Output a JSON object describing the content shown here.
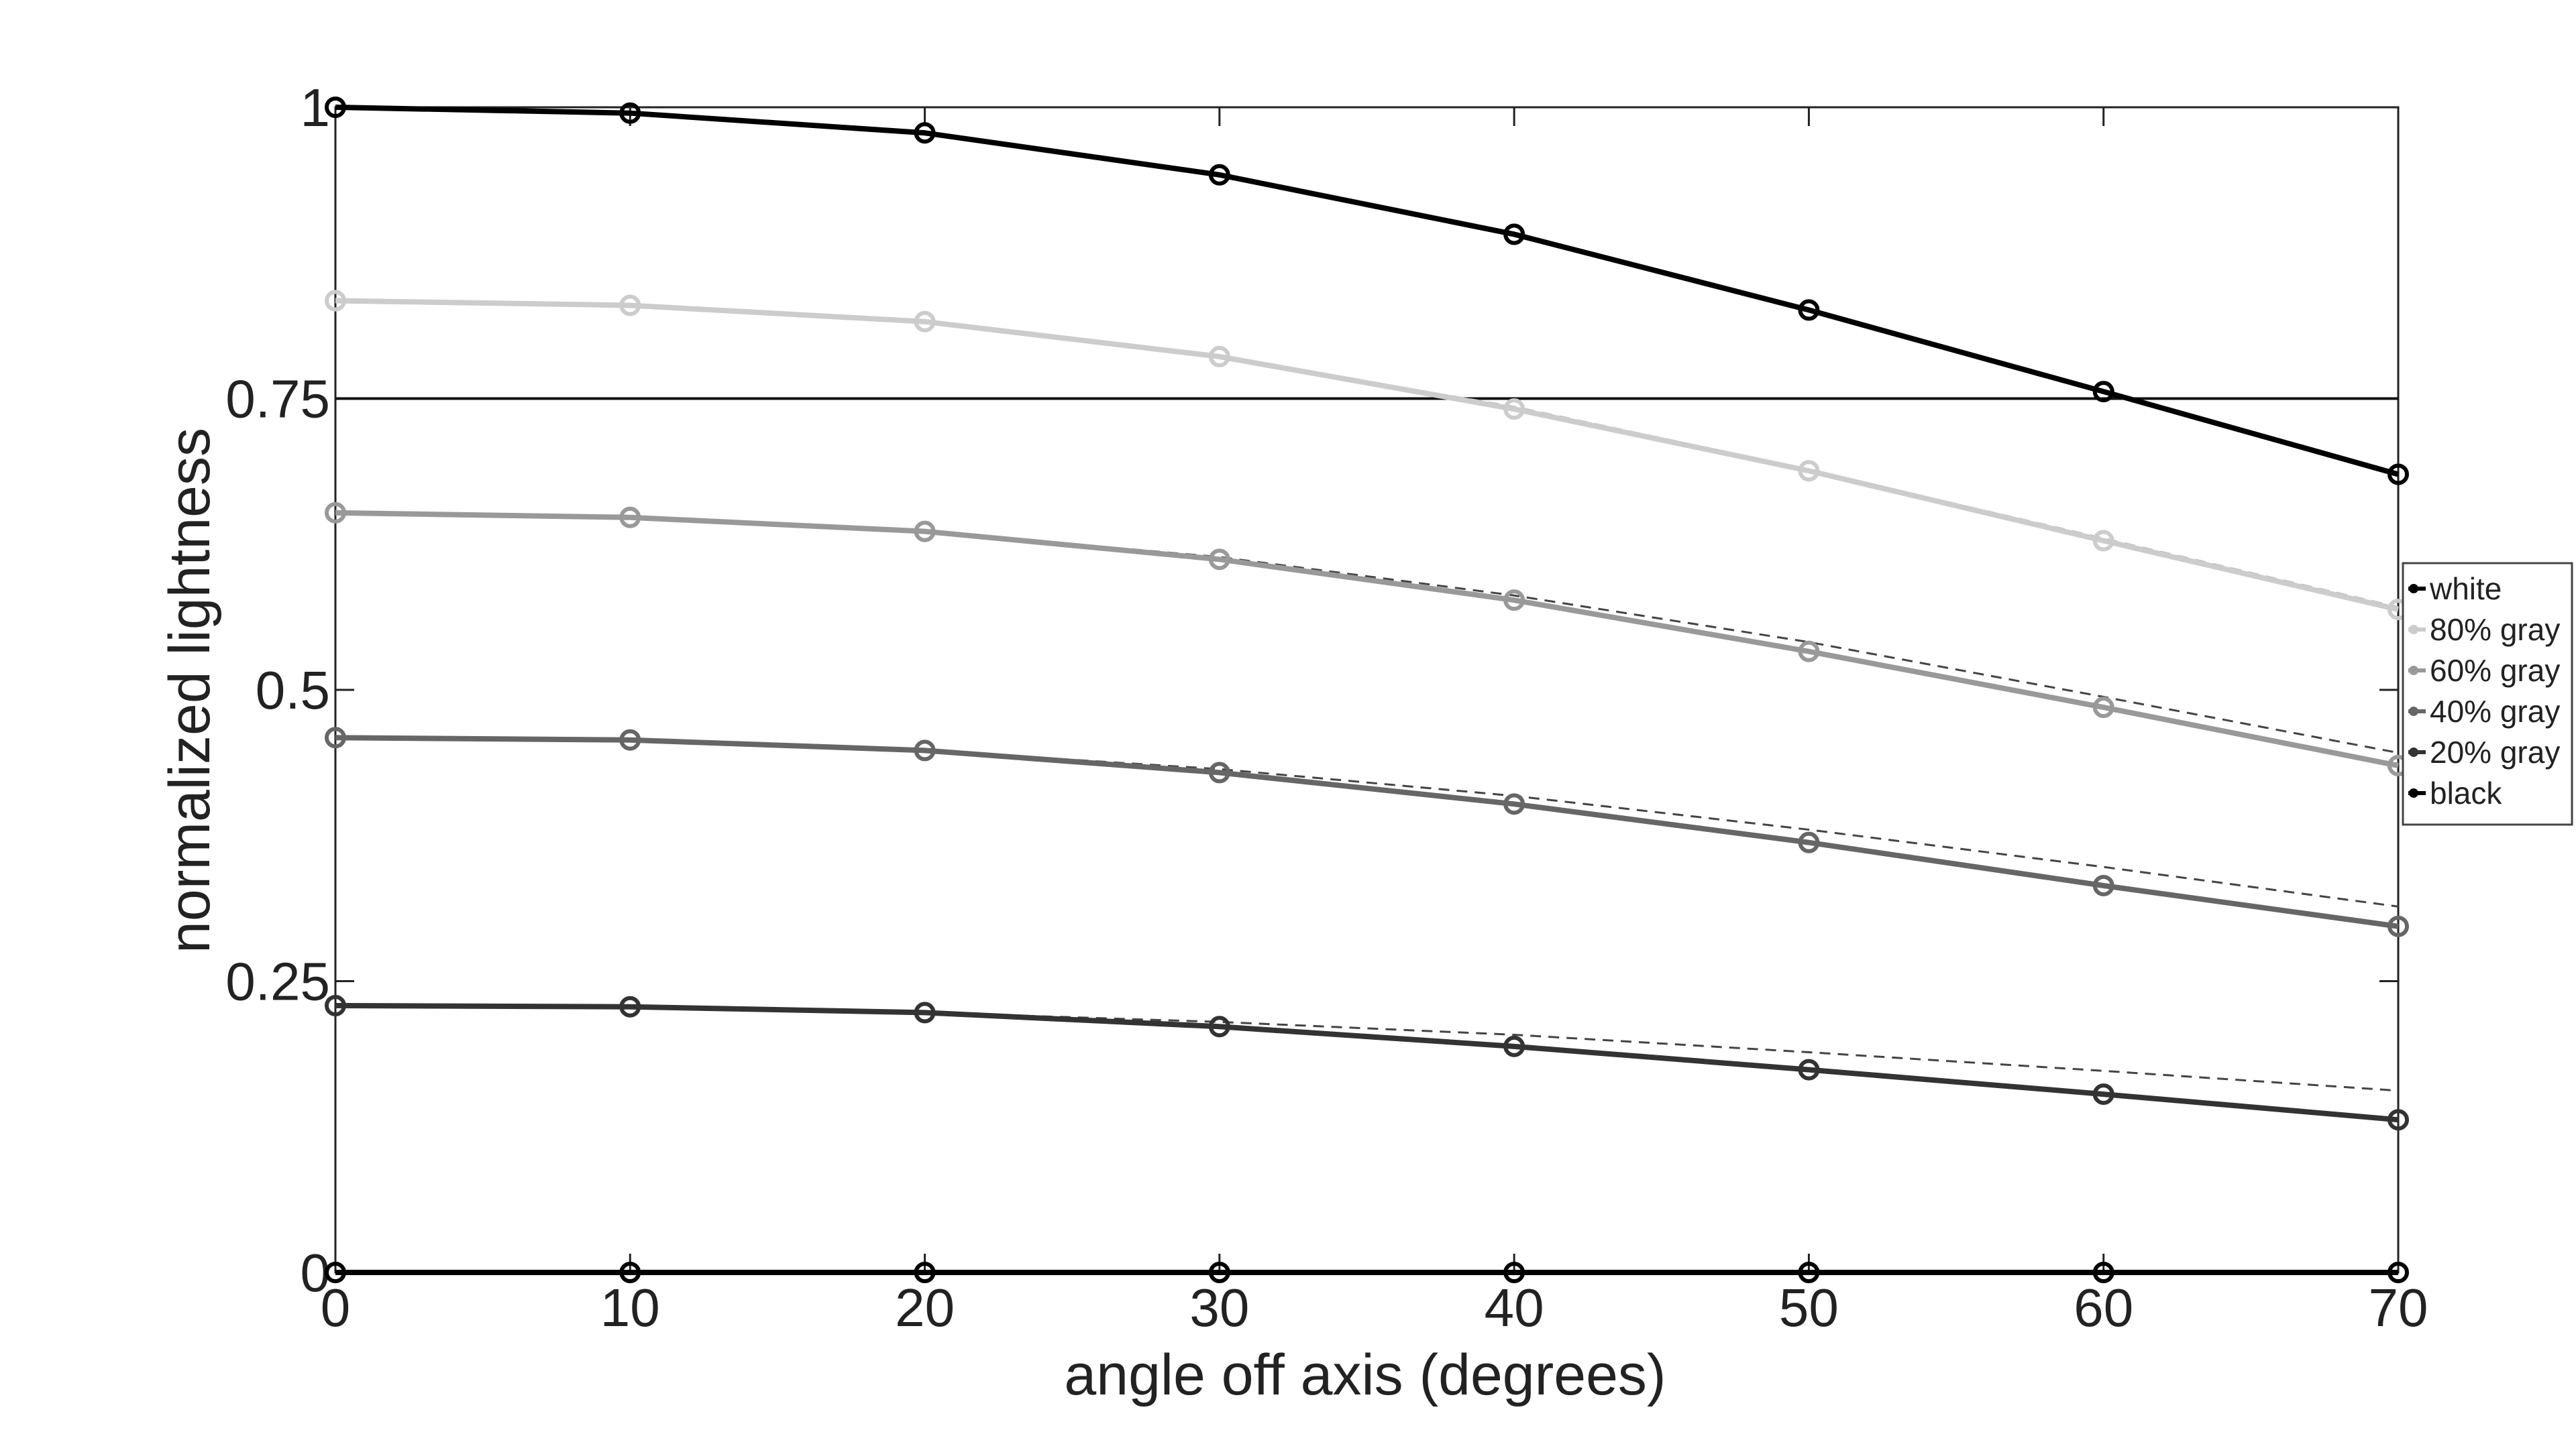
{
  "chart_data": {
    "type": "line",
    "xlabel": "angle off axis (degrees)",
    "ylabel": "normalized lightness",
    "xlim": [
      0,
      70
    ],
    "ylim": [
      0,
      1
    ],
    "x": [
      0,
      10,
      20,
      30,
      40,
      50,
      60,
      70
    ],
    "xticks": [
      0,
      10,
      20,
      30,
      40,
      50,
      60,
      70
    ],
    "yticks": [
      0,
      0.25,
      0.5,
      0.75,
      1
    ],
    "ytick_labels": [
      "0",
      "0.25",
      "0.5",
      "0.75",
      "1"
    ],
    "reference_line": 0.75,
    "grid": false,
    "legend_position": "right",
    "series": [
      {
        "name": "white",
        "color": "#000000",
        "values": [
          1.0,
          0.995,
          0.978,
          0.942,
          0.891,
          0.826,
          0.756,
          0.685
        ]
      },
      {
        "name": "80% gray",
        "color": "#cccccc",
        "values": [
          0.834,
          0.83,
          0.816,
          0.786,
          0.741,
          0.688,
          0.628,
          0.569
        ],
        "reference_values": [
          0.834,
          0.83,
          0.816,
          0.786,
          0.743,
          0.689,
          0.63,
          0.571
        ]
      },
      {
        "name": "60% gray",
        "color": "#999999",
        "values": [
          0.652,
          0.648,
          0.636,
          0.612,
          0.577,
          0.533,
          0.485,
          0.435
        ],
        "reference_values": [
          0.652,
          0.648,
          0.636,
          0.614,
          0.581,
          0.541,
          0.494,
          0.446
        ]
      },
      {
        "name": "40% gray",
        "color": "#666666",
        "values": [
          0.459,
          0.457,
          0.448,
          0.429,
          0.402,
          0.369,
          0.332,
          0.297
        ],
        "reference_values": [
          0.459,
          0.457,
          0.448,
          0.432,
          0.409,
          0.38,
          0.348,
          0.314
        ]
      },
      {
        "name": "20% gray",
        "color": "#333333",
        "values": [
          0.229,
          0.228,
          0.223,
          0.211,
          0.194,
          0.174,
          0.153,
          0.131
        ],
        "reference_values": [
          0.229,
          0.228,
          0.223,
          0.215,
          0.204,
          0.189,
          0.173,
          0.156
        ]
      },
      {
        "name": "black",
        "color": "#000000",
        "values": [
          0,
          0,
          0,
          0,
          0,
          0,
          0,
          0
        ]
      }
    ]
  }
}
